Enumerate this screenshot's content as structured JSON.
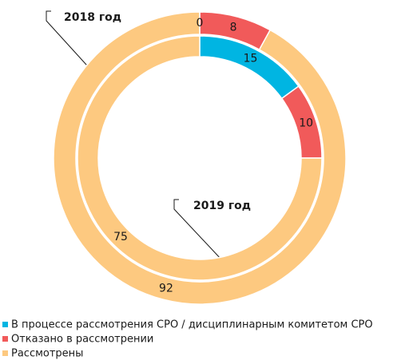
{
  "chart_data": {
    "type": "donut",
    "categories": [
      "В процессе рассмотрения СРО /  дисциплинарным комитетом СРО",
      "Отказано в рассмотрении",
      "Рассмотрены"
    ],
    "colors": [
      "#00b5e2",
      "#f15a5a",
      "#fdc980"
    ],
    "series": [
      {
        "name": "2018 год",
        "values": [
          0,
          8,
          92
        ]
      },
      {
        "name": "2019 год",
        "values": [
          15,
          10,
          75
        ]
      }
    ]
  }
}
